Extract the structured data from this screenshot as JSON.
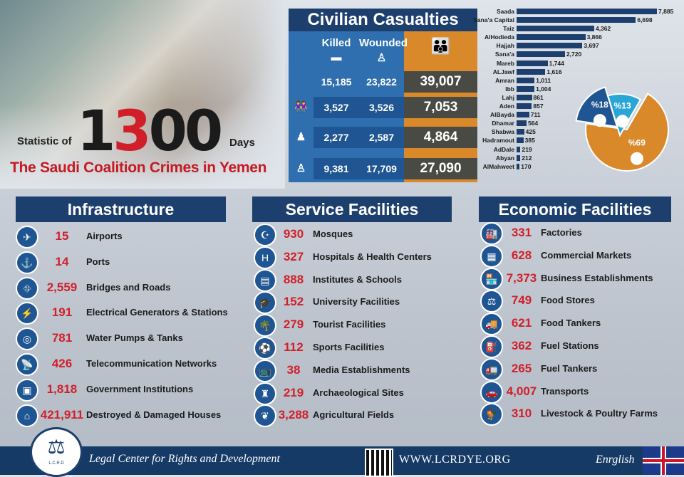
{
  "header": {
    "statistic_of": "Statistic of",
    "days_number_black1": "1",
    "days_number_red": "3",
    "days_number_black2": "00",
    "days": "Days",
    "subtitle": "The Saudi Coalition Crimes in Yemen"
  },
  "casualties": {
    "title": "Civilian Casualties",
    "killed_label": "Killed",
    "wounded_label": "Wounded",
    "rows": [
      {
        "group": "total",
        "killed": "15,185",
        "wounded": "23,822",
        "total": "39,007"
      },
      {
        "group": "women",
        "killed": "3,527",
        "wounded": "3,526",
        "total": "7,053"
      },
      {
        "group": "children",
        "killed": "2,277",
        "wounded": "2,587",
        "total": "4,864"
      },
      {
        "group": "men",
        "killed": "9,381",
        "wounded": "17,709",
        "total": "27,090"
      }
    ]
  },
  "chart_data": [
    {
      "type": "bar",
      "categories": [
        "Saada",
        "Sana'a Capital",
        "Taiz",
        "AlHodieda",
        "Hajjah",
        "Sana'a",
        "Mareb",
        "ALJawf",
        "Amran",
        "Ibb",
        "Lahj",
        "Aden",
        "AlBayda",
        "Dhamar",
        "Shabwa",
        "Hadramout",
        "AdDale",
        "Abyan",
        "AlMahweet"
      ],
      "values": [
        7885,
        6698,
        4362,
        3866,
        3697,
        2720,
        1744,
        1616,
        1011,
        1004,
        861,
        857,
        711,
        564,
        425,
        385,
        219,
        212,
        170
      ],
      "value_labels": [
        "7,885",
        "6,698",
        "4,362",
        "3,866",
        "3,697",
        "2,720",
        "1,744",
        "1,616",
        "1,011",
        "1,004",
        "861",
        "857",
        "711",
        "564",
        "425",
        "385",
        "219",
        "212",
        "170"
      ]
    },
    {
      "type": "pie",
      "labels": [
        "%69",
        "%18",
        "%13"
      ],
      "values": [
        69,
        18,
        13
      ],
      "colors": [
        "#d9892a",
        "#1e5592",
        "#29a6d6"
      ]
    }
  ],
  "infrastructure": {
    "title": "Infrastructure",
    "items": [
      {
        "icon": "airplane-icon",
        "glyph": "✈",
        "value": "15",
        "label": "Airports"
      },
      {
        "icon": "anchor-icon",
        "glyph": "⚓",
        "value": "14",
        "label": "Ports"
      },
      {
        "icon": "road-icon",
        "glyph": "⛗",
        "value": "2,559",
        "label": "Bridges and Roads"
      },
      {
        "icon": "power-tower-icon",
        "glyph": "⚡",
        "value": "191",
        "label": "Electrical Generators & Stations"
      },
      {
        "icon": "water-pump-icon",
        "glyph": "◎",
        "value": "781",
        "label": "Water Pumps & Tanks"
      },
      {
        "icon": "satellite-dish-icon",
        "glyph": "📡",
        "value": "426",
        "label": "Telecommunication Networks"
      },
      {
        "icon": "government-building-icon",
        "glyph": "▣",
        "value": "1,818",
        "label": "Government Institutions"
      },
      {
        "icon": "house-icon",
        "glyph": "⌂",
        "value": "421,911",
        "label": "Destroyed & Damaged Houses"
      }
    ]
  },
  "services": {
    "title": "Service Facilities",
    "items": [
      {
        "icon": "mosque-icon",
        "glyph": "☪",
        "value": "930",
        "label": "Mosques"
      },
      {
        "icon": "hospital-icon",
        "glyph": "H",
        "value": "327",
        "label": "Hospitals & Health Centers"
      },
      {
        "icon": "book-icon",
        "glyph": "▤",
        "value": "888",
        "label": "Institutes & Schools"
      },
      {
        "icon": "graduation-cap-icon",
        "glyph": "🎓",
        "value": "152",
        "label": "University Facilities"
      },
      {
        "icon": "palm-tree-icon",
        "glyph": "🌴",
        "value": "279",
        "label": "Tourist Facilities"
      },
      {
        "icon": "sports-field-icon",
        "glyph": "⚽",
        "value": "112",
        "label": "Sports Facilities"
      },
      {
        "icon": "television-icon",
        "glyph": "📺",
        "value": "38",
        "label": "Media Establishments"
      },
      {
        "icon": "castle-icon",
        "glyph": "♜",
        "value": "219",
        "label": "Archaeological Sites"
      },
      {
        "icon": "wheat-icon",
        "glyph": "❦",
        "value": "3,288",
        "label": "Agricultural Fields"
      }
    ]
  },
  "economic": {
    "title": "Economic Facilities",
    "items": [
      {
        "icon": "factory-icon",
        "glyph": "🏭",
        "value": "331",
        "label": "Factories"
      },
      {
        "icon": "market-icon",
        "glyph": "▦",
        "value": "628",
        "label": "Commercial Markets"
      },
      {
        "icon": "shop-icon",
        "glyph": "🏪",
        "value": "7,373",
        "label": "Business Establishments"
      },
      {
        "icon": "food-store-icon",
        "glyph": "⚖",
        "value": "749",
        "label": "Food Stores"
      },
      {
        "icon": "food-tanker-icon",
        "glyph": "🚚",
        "value": "621",
        "label": "Food Tankers"
      },
      {
        "icon": "fuel-pump-icon",
        "glyph": "⛽",
        "value": "362",
        "label": "Fuel Stations"
      },
      {
        "icon": "fuel-tanker-icon",
        "glyph": "🚛",
        "value": "265",
        "label": "Fuel Tankers"
      },
      {
        "icon": "car-icon",
        "glyph": "🚗",
        "value": "4,007",
        "label": "Transports"
      },
      {
        "icon": "rooster-icon",
        "glyph": "🐓",
        "value": "310",
        "label": "Livestock & Poultry Farms"
      }
    ]
  },
  "footer": {
    "logo_text": "L.C.R.D",
    "org": "Legal Center for Rights and Development",
    "site": "WWW.LCRDYE.ORG",
    "language": "Enrglish"
  }
}
